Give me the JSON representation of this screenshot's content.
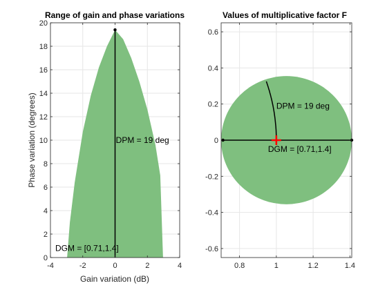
{
  "colors": {
    "fill": "#7fbf7f",
    "grid": "#e6e6e6",
    "axis": "#262626",
    "line": "#000000",
    "marker": "#ff0000"
  },
  "chart_data": [
    {
      "type": "area",
      "title": "Range of gain and phase variations",
      "xlabel": "Gain variation (dB)",
      "ylabel": "Phase variation (degrees)",
      "xlim": [
        -4,
        4
      ],
      "ylim": [
        0,
        20
      ],
      "grid": true,
      "xticks": [
        -4,
        -2,
        0,
        2,
        4
      ],
      "xtick_labels": [
        "-4",
        "-2",
        "0",
        "2",
        "4"
      ],
      "yticks": [
        0,
        2,
        4,
        6,
        8,
        10,
        12,
        14,
        16,
        18,
        20
      ],
      "ytick_labels": [
        "0",
        "2",
        "4",
        "6",
        "8",
        "10",
        "12",
        "14",
        "16",
        "18",
        "20"
      ],
      "region": {
        "x": [
          -2.97,
          -2.8,
          -2.5,
          -2.0,
          -1.5,
          -1.0,
          -0.5,
          0.0,
          0.5,
          1.0,
          1.5,
          2.0,
          2.5,
          2.8,
          2.97
        ],
        "y": [
          0.0,
          3.0,
          6.4,
          10.7,
          13.8,
          16.2,
          18.0,
          19.4,
          18.6,
          17.0,
          15.0,
          12.6,
          9.6,
          7.0,
          0.0
        ]
      },
      "dpm_line": {
        "x": [
          0,
          0
        ],
        "y": [
          0,
          19.4
        ]
      },
      "peak_marker": {
        "x": 0,
        "y": 19.4
      },
      "annotations": [
        {
          "text": "DPM = 19 deg",
          "x": 0.05,
          "y": 10
        },
        {
          "text": "DGM = [0.71,1.4]",
          "x": -3.7,
          "y": 0.8
        }
      ]
    },
    {
      "type": "scatter",
      "title": "Values of multiplicative factor F",
      "xlabel": "",
      "ylabel": "",
      "xlim": [
        0.7,
        1.41
      ],
      "ylim": [
        -0.65,
        0.65
      ],
      "grid": true,
      "xticks": [
        0.8,
        1.0,
        1.2,
        1.4
      ],
      "xtick_labels": [
        "0.8",
        "1",
        "1.2",
        "1.4"
      ],
      "yticks": [
        -0.6,
        -0.4,
        -0.2,
        0,
        0.2,
        0.4,
        0.6
      ],
      "ytick_labels": [
        "-0.6",
        "-0.4",
        "-0.2",
        "0",
        "0.2",
        "0.4",
        "0.6"
      ],
      "disk": {
        "center": [
          1.055,
          0
        ],
        "radius": 0.355
      },
      "gain_line": {
        "x": [
          0.71,
          1.41
        ],
        "y": [
          0,
          0
        ]
      },
      "gain_endpoints": [
        {
          "x": 0.71,
          "y": 0
        },
        {
          "x": 1.41,
          "y": 0
        }
      ],
      "phase_arc": {
        "radius": 1.0,
        "start_deg": 0,
        "end_deg": 19
      },
      "nominal_marker": {
        "x": 1,
        "y": 0
      },
      "annotations": [
        {
          "text": "DPM = 19 deg",
          "x": 1.0,
          "y": 0.19
        },
        {
          "text": "DGM = [0.71,1.4]",
          "x": 0.955,
          "y": -0.05
        }
      ]
    }
  ]
}
